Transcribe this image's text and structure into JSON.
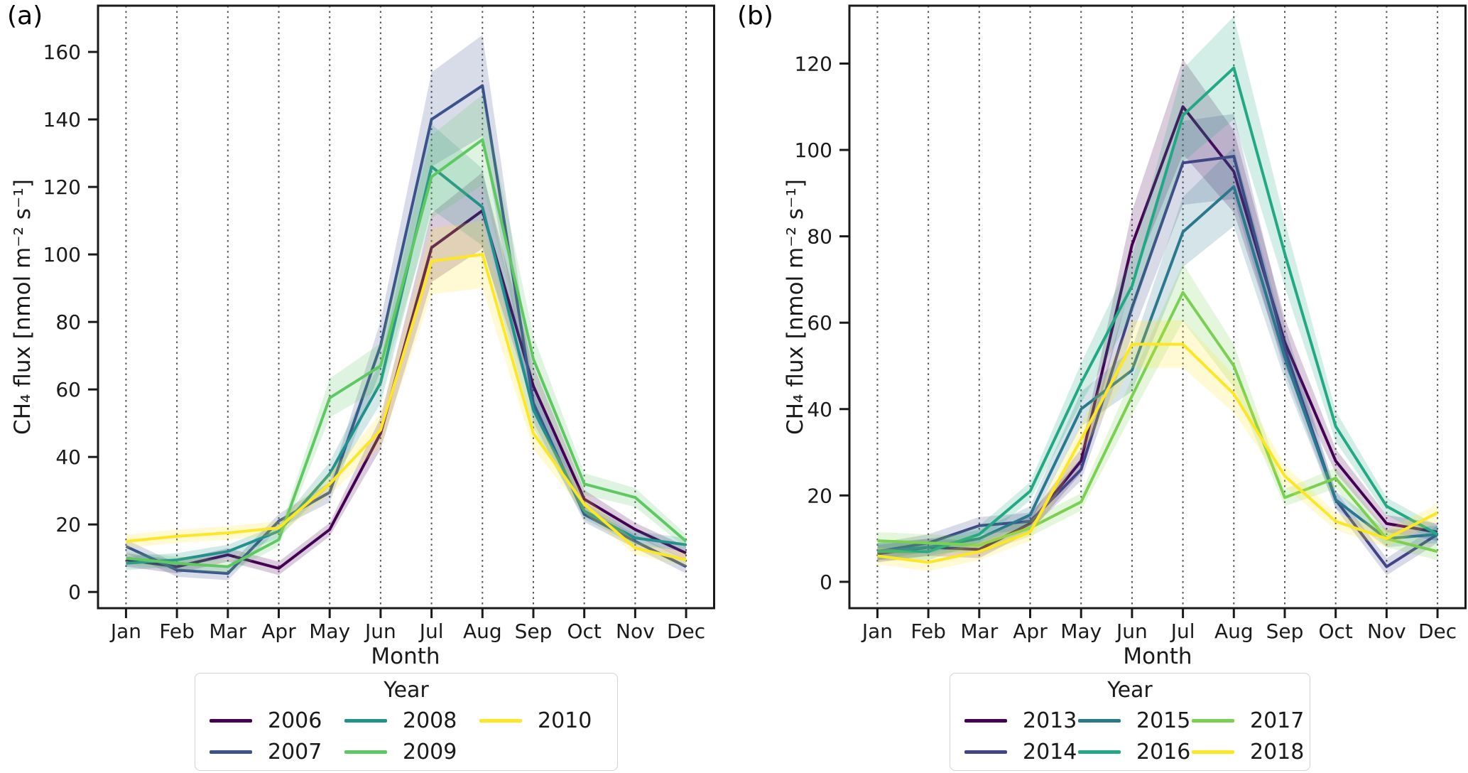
{
  "figure": {
    "background": "#ffffff",
    "text_color": "#1a1a1a",
    "grid_color": "#555555",
    "spine_color": "#1a1a1a"
  },
  "chart_data": [
    {
      "type": "line",
      "panel_label": "(a)",
      "xlabel": "Month",
      "ylabel": "CH₄ flux [nmol m⁻² s⁻¹]",
      "legend_title": "Year",
      "legend_position": "below-center",
      "grid": "vertical-dotted",
      "months": [
        "Jan",
        "Feb",
        "Mar",
        "Apr",
        "May",
        "Jun",
        "Jul",
        "Aug",
        "Sep",
        "Oct",
        "Nov",
        "Dec"
      ],
      "yticks": [
        0,
        20,
        40,
        60,
        80,
        100,
        120,
        140,
        160
      ],
      "ylim": [
        -4.8,
        173.7
      ],
      "xlim": [
        -0.55,
        11.55
      ],
      "band_fraction": 0.1,
      "band_min": 2,
      "series": [
        {
          "name": "2006",
          "color": "#440154",
          "values": [
            9.5,
            7.5,
            11,
            7,
            18.5,
            47,
            102,
            113,
            61,
            27.5,
            18.5,
            11.5
          ]
        },
        {
          "name": "2007",
          "color": "#3b528b",
          "values": [
            13.5,
            6.5,
            5.5,
            21,
            29.5,
            73,
            140,
            150,
            56,
            23,
            15,
            7.5
          ]
        },
        {
          "name": "2008",
          "color": "#21918c",
          "values": [
            8.5,
            9.5,
            12,
            18,
            35,
            62,
            126,
            114,
            54,
            24,
            16,
            14
          ]
        },
        {
          "name": "2009",
          "color": "#5ec962",
          "values": [
            10,
            8.5,
            7.5,
            15.5,
            57.5,
            67,
            123,
            134,
            69,
            32,
            28,
            15
          ]
        },
        {
          "name": "2010",
          "color": "#fde725",
          "values": [
            15,
            16.5,
            17.5,
            19,
            32,
            48,
            98,
            100,
            47,
            26,
            13,
            9.5
          ]
        }
      ]
    },
    {
      "type": "line",
      "panel_label": "(b)",
      "xlabel": "Month",
      "ylabel": "CH₄ flux [nmol m⁻² s⁻¹]",
      "legend_title": "Year",
      "legend_position": "below-center",
      "grid": "vertical-dotted",
      "months": [
        "Jan",
        "Feb",
        "Mar",
        "Apr",
        "May",
        "Jun",
        "Jul",
        "Aug",
        "Sep",
        "Oct",
        "Nov",
        "Dec"
      ],
      "yticks": [
        0,
        20,
        40,
        60,
        80,
        100,
        120
      ],
      "ylim": [
        -6.1,
        133.4
      ],
      "xlim": [
        -0.55,
        11.55
      ],
      "band_fraction": 0.1,
      "band_min": 2,
      "series": [
        {
          "name": "2013",
          "color": "#440154",
          "values": [
            6.5,
            8,
            7.5,
            13.5,
            28,
            78,
            110,
            95,
            55.5,
            28,
            13.5,
            11.5
          ]
        },
        {
          "name": "2014",
          "color": "#414487",
          "values": [
            7,
            9,
            13,
            14,
            26,
            63.5,
            97,
            98.5,
            54,
            19,
            3.5,
            11
          ]
        },
        {
          "name": "2015",
          "color": "#2a788e",
          "values": [
            7,
            8,
            10,
            15.5,
            40,
            49,
            81,
            91.5,
            52,
            19,
            10,
            11
          ]
        },
        {
          "name": "2016",
          "color": "#22a884",
          "values": [
            7,
            7,
            11,
            21,
            46,
            68.5,
            108,
            119,
            76,
            36,
            17.5,
            11
          ]
        },
        {
          "name": "2017",
          "color": "#7ad151",
          "values": [
            9.5,
            9,
            8.5,
            12.5,
            18.5,
            43,
            67,
            50,
            19.5,
            24,
            10,
            7
          ]
        },
        {
          "name": "2018",
          "color": "#fde725",
          "values": [
            6,
            4.5,
            7,
            11.5,
            33,
            55,
            55,
            43.5,
            24.5,
            14,
            10,
            16
          ]
        }
      ]
    }
  ]
}
